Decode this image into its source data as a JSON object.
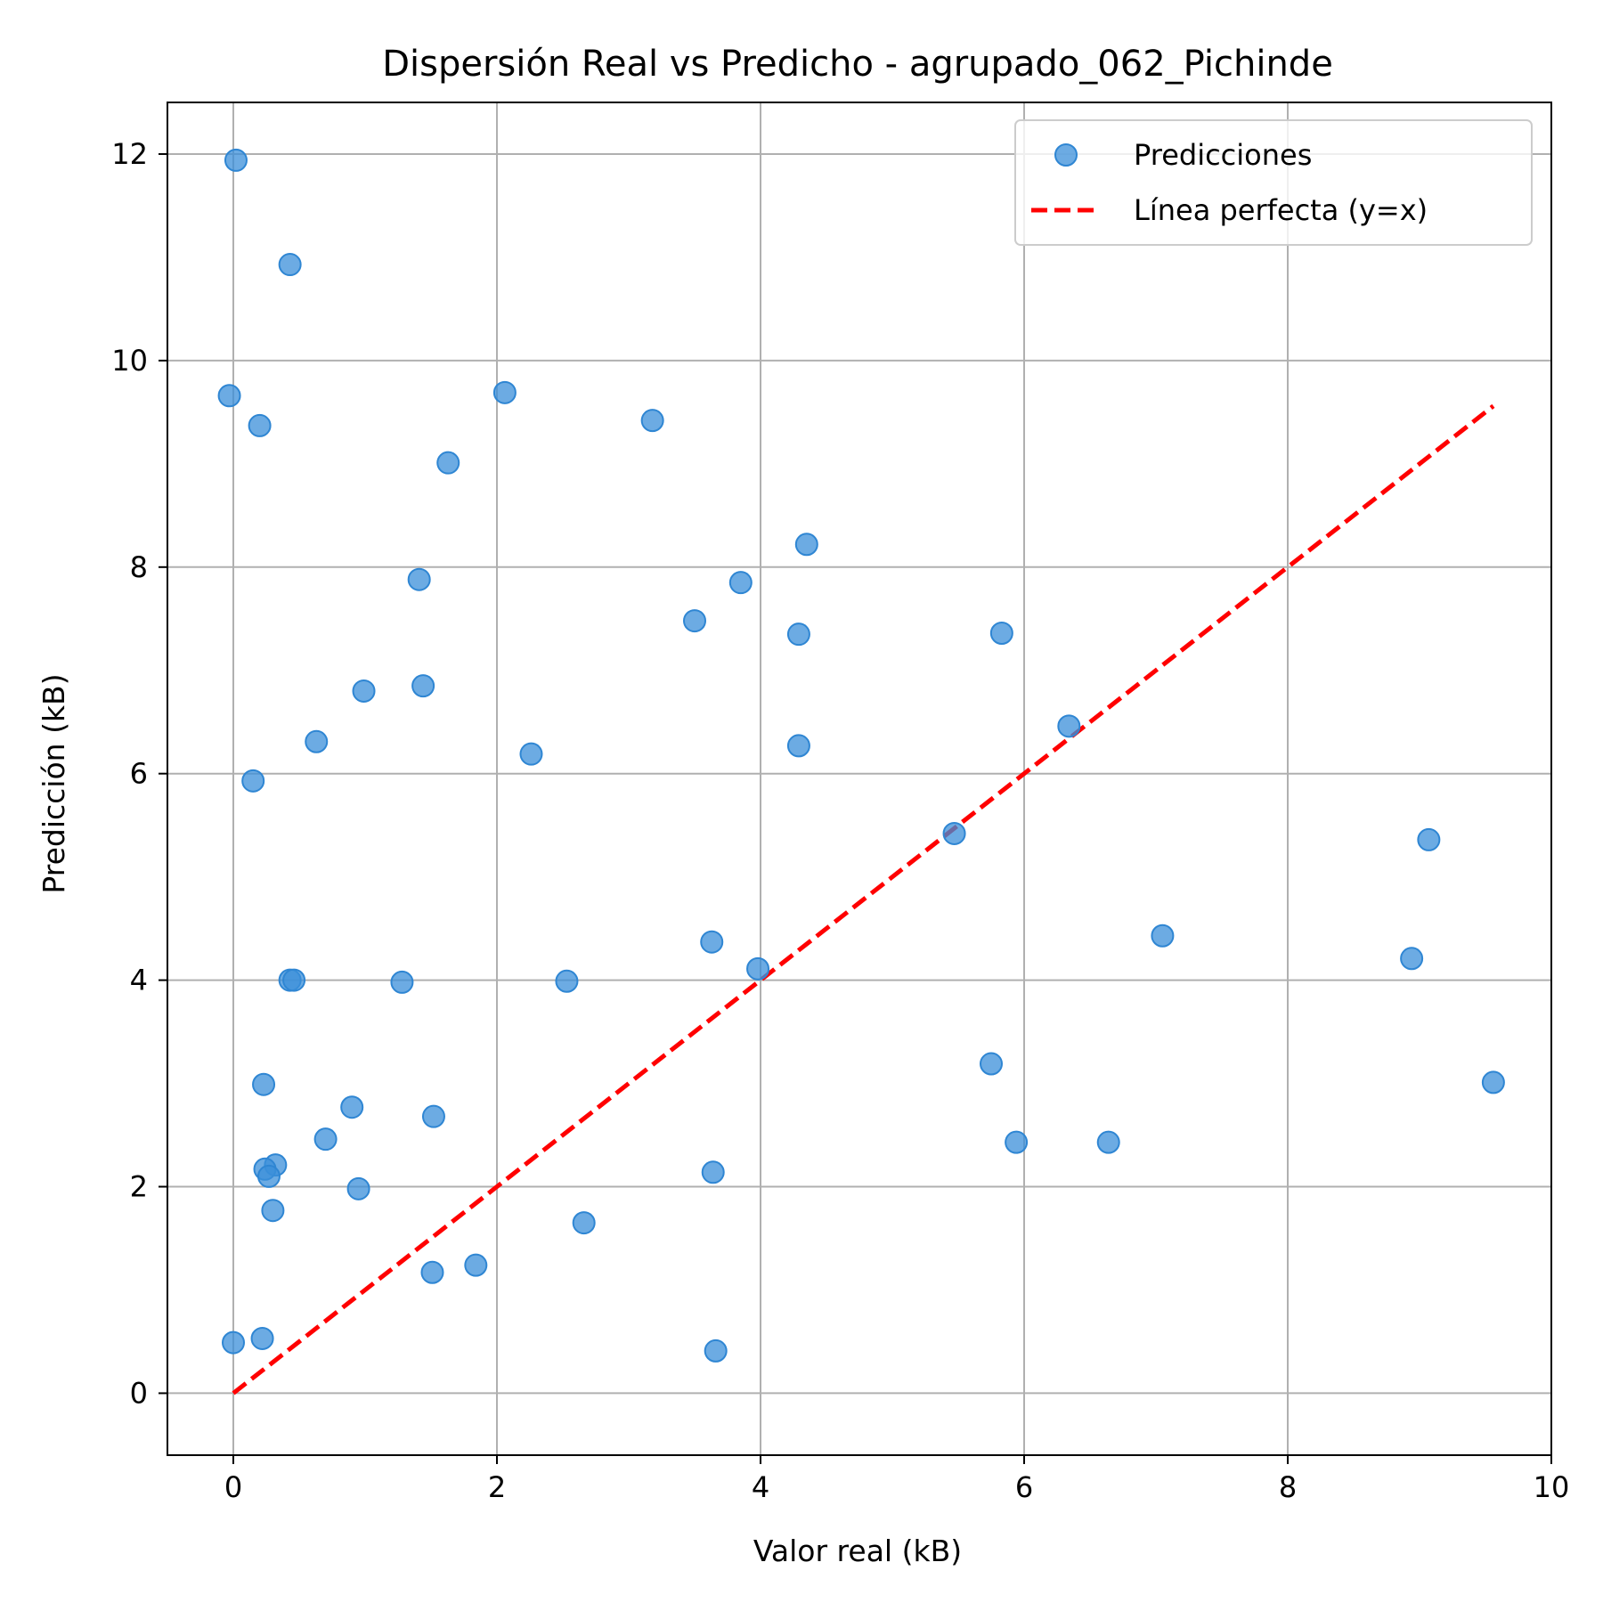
{
  "chart_data": {
    "type": "scatter",
    "title": "Dispersión Real vs Predicho - agrupado_062_Pichinde",
    "xlabel": "Valor real (kB)",
    "ylabel": "Predicción (kB)",
    "xlim": [
      -0.5,
      10.0
    ],
    "ylim": [
      -0.6,
      12.5
    ],
    "xticks": [
      0,
      2,
      4,
      6,
      8,
      10
    ],
    "yticks": [
      0,
      2,
      4,
      6,
      8,
      10,
      12
    ],
    "xtick_labels": [
      "0",
      "2",
      "4",
      "6",
      "8",
      "10"
    ],
    "ytick_labels": [
      "0",
      "2",
      "4",
      "6",
      "8",
      "10",
      "12"
    ],
    "grid": true,
    "legend": {
      "placement": "top-right",
      "entries": [
        "Predicciones",
        "Línea perfecta (y=x)"
      ]
    },
    "series": [
      {
        "name": "Predicciones",
        "kind": "scatter",
        "color": "#3b8fd9",
        "points": [
          [
            0.02,
            11.94
          ],
          [
            0.43,
            10.93
          ],
          [
            -0.03,
            9.66
          ],
          [
            0.2,
            9.37
          ],
          [
            2.06,
            9.69
          ],
          [
            3.18,
            9.42
          ],
          [
            1.63,
            9.01
          ],
          [
            4.35,
            8.22
          ],
          [
            1.41,
            7.88
          ],
          [
            3.85,
            7.85
          ],
          [
            3.5,
            7.48
          ],
          [
            4.29,
            7.35
          ],
          [
            5.83,
            7.36
          ],
          [
            0.99,
            6.8
          ],
          [
            1.44,
            6.85
          ],
          [
            6.34,
            6.46
          ],
          [
            0.63,
            6.31
          ],
          [
            2.26,
            6.19
          ],
          [
            4.29,
            6.27
          ],
          [
            0.15,
            5.93
          ],
          [
            5.47,
            5.42
          ],
          [
            9.07,
            5.36
          ],
          [
            7.05,
            4.43
          ],
          [
            3.63,
            4.37
          ],
          [
            3.98,
            4.11
          ],
          [
            8.94,
            4.21
          ],
          [
            0.43,
            4.0
          ],
          [
            0.46,
            4.0
          ],
          [
            1.28,
            3.98
          ],
          [
            2.53,
            3.99
          ],
          [
            5.75,
            3.19
          ],
          [
            9.56,
            3.01
          ],
          [
            0.23,
            2.99
          ],
          [
            0.9,
            2.77
          ],
          [
            1.52,
            2.68
          ],
          [
            0.7,
            2.46
          ],
          [
            5.94,
            2.43
          ],
          [
            6.64,
            2.43
          ],
          [
            0.32,
            2.21
          ],
          [
            0.24,
            2.17
          ],
          [
            0.27,
            2.1
          ],
          [
            3.64,
            2.14
          ],
          [
            0.95,
            1.98
          ],
          [
            0.3,
            1.77
          ],
          [
            2.66,
            1.65
          ],
          [
            1.84,
            1.24
          ],
          [
            1.51,
            1.17
          ],
          [
            0.0,
            0.49
          ],
          [
            0.22,
            0.53
          ],
          [
            3.66,
            0.41
          ]
        ]
      },
      {
        "name": "Línea perfecta (y=x)",
        "kind": "line",
        "color": "#ff0000",
        "dash": "dashed",
        "x": [
          0.0,
          9.56
        ],
        "y": [
          0.0,
          9.56
        ]
      }
    ]
  }
}
